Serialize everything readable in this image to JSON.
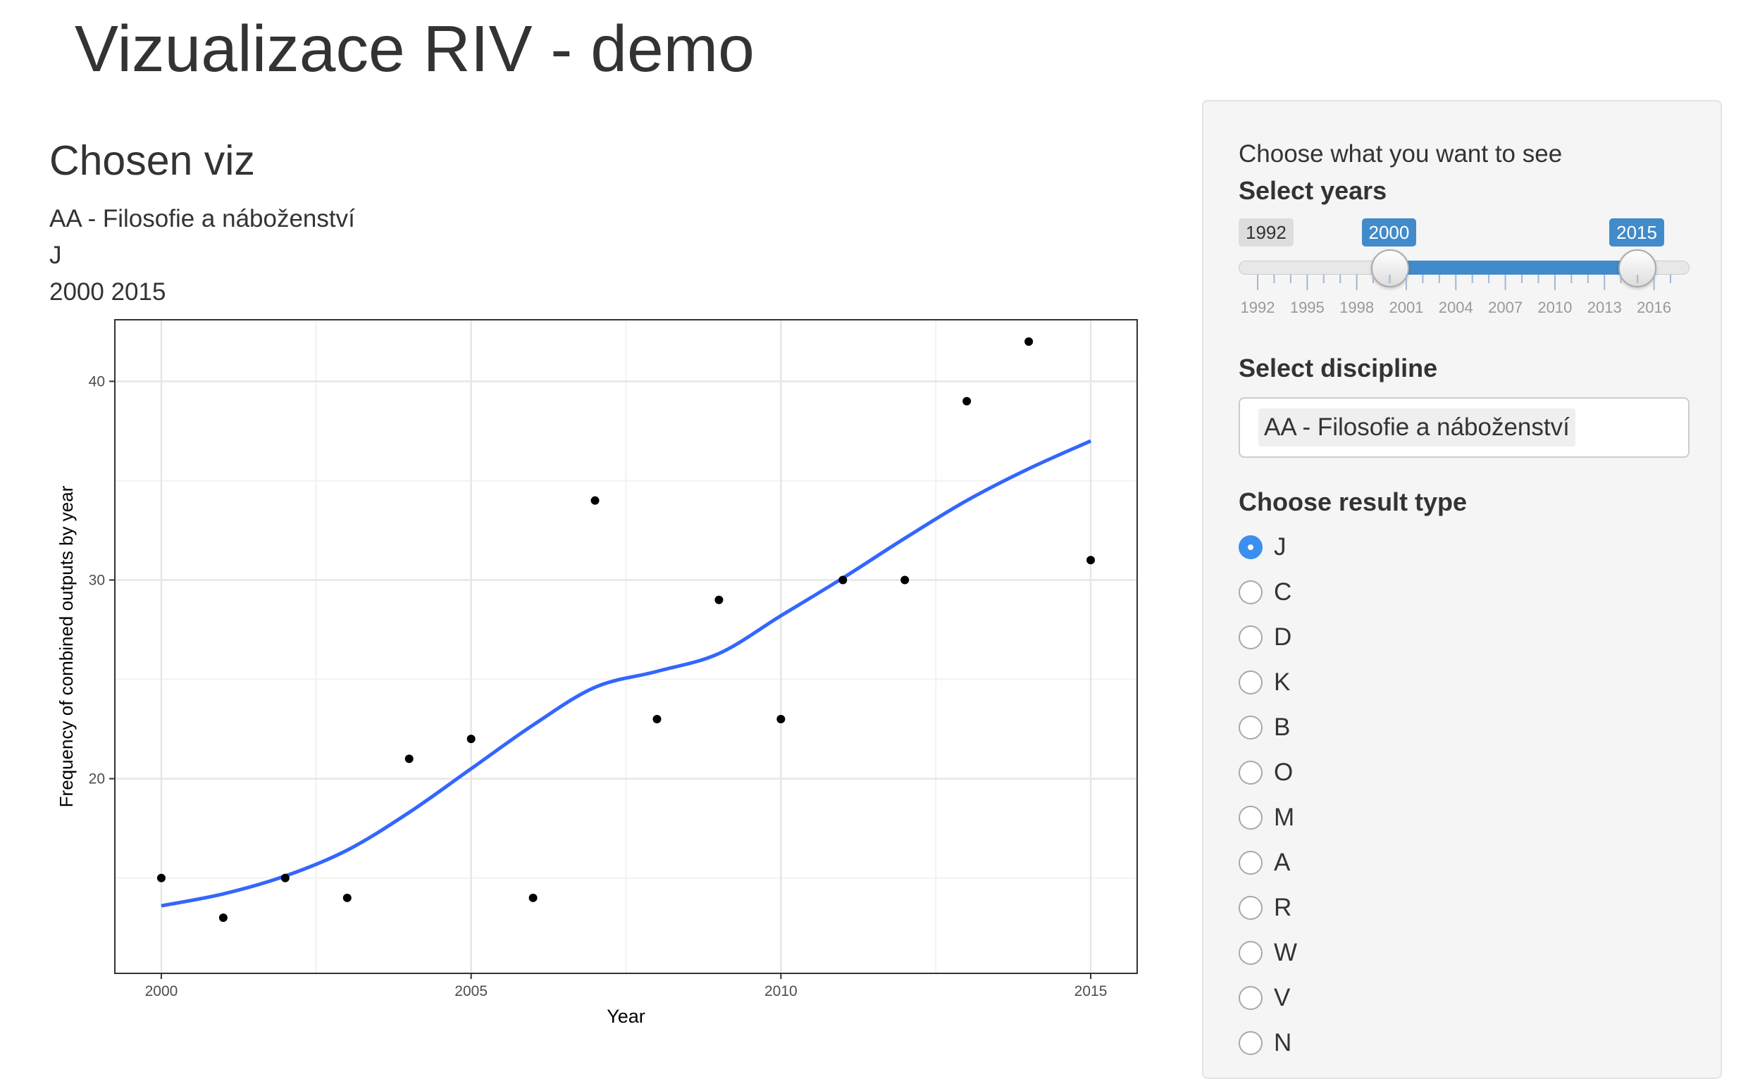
{
  "app": {
    "title": "Vizualizace RIV - demo"
  },
  "main": {
    "heading": "Chosen viz",
    "selected_discipline": "AA - Filosofie a náboženství",
    "selected_result_type": "J",
    "selected_years": "2000 2015"
  },
  "sidebar": {
    "intro": "Choose what you want to see",
    "years": {
      "label": "Select years",
      "min_label": "1992",
      "from_label": "2000",
      "to_label": "2015",
      "min": 1992,
      "max": 2017,
      "from": 2000,
      "to": 2015,
      "ticks": [
        "1992",
        "1995",
        "1998",
        "2001",
        "2004",
        "2007",
        "2010",
        "2013",
        "2016"
      ]
    },
    "discipline": {
      "label": "Select discipline",
      "value": "AA - Filosofie a náboženství"
    },
    "result_type": {
      "label": "Choose result type",
      "options": [
        "J",
        "C",
        "D",
        "K",
        "B",
        "O",
        "M",
        "A",
        "R",
        "W",
        "V",
        "N"
      ],
      "selected": "J"
    }
  },
  "colors": {
    "accent": "#428bca",
    "smooth_line": "#3366ff",
    "points": "#000000",
    "radio_checked": "#3b8ff0"
  },
  "chart_data": {
    "type": "scatter",
    "xlabel": "Year",
    "ylabel": "Frequency of combined outputs by year",
    "x_ticks": [
      2000,
      2005,
      2010,
      2015
    ],
    "y_ticks": [
      20,
      30,
      40
    ],
    "xlim": [
      1999.25,
      2015.75
    ],
    "ylim": [
      10.2,
      43.1
    ],
    "grid": true,
    "points": {
      "x": [
        2000,
        2001,
        2002,
        2003,
        2004,
        2005,
        2006,
        2007,
        2008,
        2009,
        2010,
        2011,
        2012,
        2013,
        2014,
        2015
      ],
      "y": [
        15,
        13,
        15,
        14,
        21,
        22,
        14,
        34,
        23,
        29,
        23,
        30,
        30,
        39,
        42,
        31
      ]
    },
    "smooth": {
      "x": [
        2000,
        2001,
        2002,
        2003,
        2004,
        2005,
        2006,
        2007,
        2008,
        2009,
        2010,
        2011,
        2012,
        2013,
        2014,
        2015
      ],
      "y": [
        13.6,
        14.2,
        15.1,
        16.4,
        18.3,
        20.5,
        22.7,
        24.6,
        25.4,
        26.3,
        28.2,
        30.1,
        32.1,
        34.0,
        35.6,
        37.0
      ]
    }
  }
}
